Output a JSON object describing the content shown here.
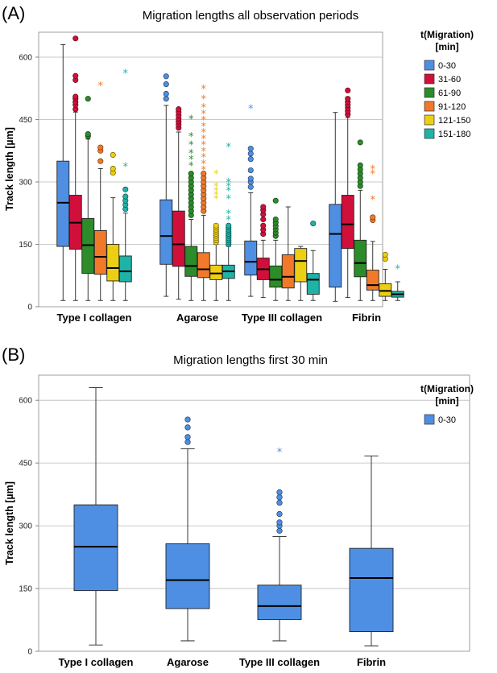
{
  "chart_data": [
    {
      "type": "box",
      "panel_label": "(A)",
      "title": "Migration lengths all observation periods",
      "ylabel": "Track length [µm]",
      "xlabel": "",
      "ylim": [
        0,
        660
      ],
      "yticks": [
        0,
        150,
        300,
        450,
        600
      ],
      "grid": true,
      "legend": {
        "title_lines": [
          "t(Migration)",
          "[min]"
        ],
        "placement": "top-right",
        "entries": [
          {
            "name": "0-30",
            "color": "#4f8fe3"
          },
          {
            "name": "31-60",
            "color": "#d0103a"
          },
          {
            "name": "61-90",
            "color": "#2c8c2a"
          },
          {
            "name": "91-120",
            "color": "#f07a2a"
          },
          {
            "name": "121-150",
            "color": "#eccf12"
          },
          {
            "name": "151-180",
            "color": "#1fb2a6"
          }
        ]
      },
      "categories": [
        "Type I collagen",
        "Agarose",
        "Type III collagen",
        "Fibrin"
      ],
      "series": [
        {
          "name": "0-30",
          "color": "#4f8fe3",
          "boxes": [
            {
              "min": 15,
              "q1": 145,
              "median": 250,
              "q3": 350,
              "max": 630,
              "outliers": [],
              "extremes": []
            },
            {
              "min": 25,
              "q1": 102,
              "median": 170,
              "q3": 257,
              "max": 484,
              "outliers": [
                500,
                512,
                535,
                554
              ],
              "extremes": []
            },
            {
              "min": 25,
              "q1": 76,
              "median": 108,
              "q3": 158,
              "max": 274,
              "outliers": [
                288,
                300,
                308,
                328,
                355,
                368,
                380
              ],
              "extremes": [
                477
              ]
            },
            {
              "min": 13,
              "q1": 47,
              "median": 175,
              "q3": 246,
              "max": 467,
              "outliers": [],
              "extremes": []
            }
          ]
        },
        {
          "name": "31-60",
          "color": "#d0103a",
          "boxes": [
            {
              "min": 15,
              "q1": 138,
              "median": 202,
              "q3": 268,
              "max": 468,
              "outliers": [
                475,
                485,
                492,
                500,
                505,
                545,
                555,
                645
              ],
              "extremes": []
            },
            {
              "min": 18,
              "q1": 97,
              "median": 150,
              "q3": 230,
              "max": 420,
              "outliers": [
                430,
                438,
                445,
                452,
                460,
                468,
                475
              ],
              "extremes": []
            },
            {
              "min": 22,
              "q1": 65,
              "median": 90,
              "q3": 117,
              "max": 160,
              "outliers": [
                175,
                185,
                195,
                210,
                222,
                232,
                240
              ],
              "extremes": []
            },
            {
              "min": 22,
              "q1": 140,
              "median": 198,
              "q3": 268,
              "max": 455,
              "outliers": [
                462,
                470,
                478,
                485,
                492,
                500,
                520
              ],
              "extremes": []
            }
          ]
        },
        {
          "name": "61-90",
          "color": "#2c8c2a",
          "boxes": [
            {
              "min": 15,
              "q1": 80,
              "median": 148,
              "q3": 212,
              "max": 403,
              "outliers": [
                410,
                415,
                500
              ],
              "extremes": []
            },
            {
              "min": 15,
              "q1": 73,
              "median": 98,
              "q3": 145,
              "max": 210,
              "outliers": [
                220,
                230,
                240,
                250,
                260,
                270,
                280,
                290,
                300,
                310,
                320
              ],
              "extremes": [
                340,
                355,
                370,
                390,
                410,
                452
              ]
            },
            {
              "min": 15,
              "q1": 47,
              "median": 65,
              "q3": 98,
              "max": 160,
              "outliers": [
                170,
                178,
                186,
                194,
                202,
                210,
                255
              ],
              "extremes": []
            },
            {
              "min": 15,
              "q1": 72,
              "median": 105,
              "q3": 160,
              "max": 280,
              "outliers": [
                290,
                300,
                310,
                320,
                330,
                340,
                395
              ],
              "extremes": []
            }
          ]
        },
        {
          "name": "91-120",
          "color": "#f07a2a",
          "boxes": [
            {
              "min": 15,
              "q1": 78,
              "median": 120,
              "q3": 183,
              "max": 332,
              "outliers": [
                350,
                375,
                383
              ],
              "extremes": [
                532
              ]
            },
            {
              "min": 15,
              "q1": 70,
              "median": 90,
              "q3": 130,
              "max": 220,
              "outliers": [
                230,
                240,
                250,
                260,
                270,
                280,
                290,
                300,
                310,
                320
              ],
              "extremes": [
                330,
                345,
                360,
                375,
                390,
                405,
                420,
                435,
                450,
                465,
                480,
                500,
                525
              ]
            },
            {
              "min": 15,
              "q1": 45,
              "median": 72,
              "q3": 125,
              "max": 240,
              "outliers": [],
              "extremes": []
            },
            {
              "min": 15,
              "q1": 40,
              "median": 52,
              "q3": 88,
              "max": 157,
              "outliers": [
                208,
                215
              ],
              "extremes": [
                258,
                320,
                332
              ]
            }
          ]
        },
        {
          "name": "121-150",
          "color": "#eccf12",
          "boxes": [
            {
              "min": 15,
              "q1": 62,
              "median": 93,
              "q3": 150,
              "max": 262,
              "outliers": [
                322,
                332,
                365
              ],
              "extremes": []
            },
            {
              "min": 15,
              "q1": 65,
              "median": 80,
              "q3": 100,
              "max": 150,
              "outliers": [
                155,
                160,
                165,
                170,
                175,
                180,
                185,
                190,
                195
              ],
              "extremes": [
                260,
                270,
                280,
                290,
                320
              ]
            },
            {
              "min": 15,
              "q1": 60,
              "median": 110,
              "q3": 140,
              "max": 145,
              "outliers": [],
              "extremes": []
            },
            {
              "min": 15,
              "q1": 25,
              "median": 38,
              "q3": 55,
              "max": 90,
              "outliers": [
                115,
                125
              ],
              "extremes": []
            }
          ]
        },
        {
          "name": "151-180",
          "color": "#1fb2a6",
          "boxes": [
            {
              "min": 15,
              "q1": 60,
              "median": 85,
              "q3": 122,
              "max": 225,
              "outliers": [
                235,
                245,
                255,
                265,
                282
              ],
              "extremes": [
                338,
                562
              ]
            },
            {
              "min": 15,
              "q1": 68,
              "median": 85,
              "q3": 100,
              "max": 145,
              "outliers": [
                150,
                155,
                160,
                165,
                170,
                175,
                180,
                185,
                190,
                195
              ],
              "extremes": [
                210,
                225,
                260,
                280,
                290,
                300,
                385
              ]
            },
            {
              "min": 15,
              "q1": 30,
              "median": 65,
              "q3": 80,
              "max": 135,
              "outliers": [
                200
              ],
              "extremes": []
            },
            {
              "min": 15,
              "q1": 23,
              "median": 30,
              "q3": 37,
              "max": 60,
              "outliers": [],
              "extremes": [
                92
              ]
            }
          ]
        }
      ]
    },
    {
      "type": "box",
      "panel_label": "(B)",
      "title": "Migration lengths first 30 min",
      "ylabel": "Track length [µm]",
      "xlabel": "",
      "ylim": [
        0,
        660
      ],
      "yticks": [
        0,
        150,
        300,
        450,
        600
      ],
      "grid": true,
      "legend": {
        "title_lines": [
          "t(Migration)",
          "[min]"
        ],
        "placement": "top-right",
        "entries": [
          {
            "name": "0-30",
            "color": "#4f8fe3"
          }
        ]
      },
      "categories": [
        "Type I collagen",
        "Agarose",
        "Type III collagen",
        "Fibrin"
      ],
      "series": [
        {
          "name": "0-30",
          "color": "#4f8fe3",
          "boxes": [
            {
              "min": 15,
              "q1": 145,
              "median": 250,
              "q3": 350,
              "max": 630,
              "outliers": [],
              "extremes": []
            },
            {
              "min": 25,
              "q1": 102,
              "median": 170,
              "q3": 257,
              "max": 484,
              "outliers": [
                500,
                512,
                535,
                554
              ],
              "extremes": []
            },
            {
              "min": 25,
              "q1": 76,
              "median": 108,
              "q3": 158,
              "max": 274,
              "outliers": [
                288,
                300,
                308,
                328,
                355,
                368,
                380
              ],
              "extremes": [
                477
              ]
            },
            {
              "min": 13,
              "q1": 47,
              "median": 175,
              "q3": 246,
              "max": 467,
              "outliers": [],
              "extremes": []
            }
          ]
        }
      ]
    }
  ]
}
